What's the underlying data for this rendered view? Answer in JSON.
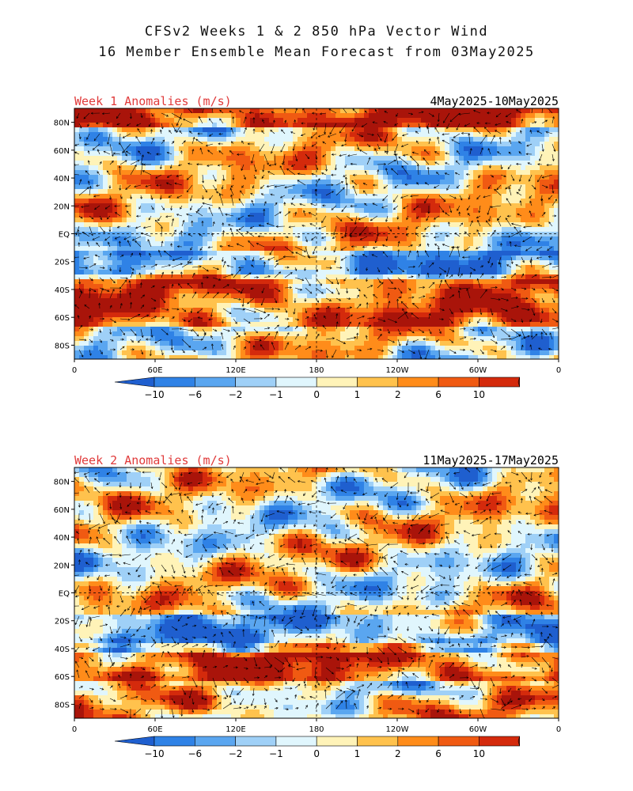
{
  "title": {
    "line1": "CFSv2 Weeks 1 & 2 850 hPa Vector Wind",
    "line2": "16 Member Ensemble Mean Forecast from 03May2025"
  },
  "panels": [
    {
      "label": "Week 1 Anomalies (m/s)",
      "dates": "4May2025-10May2025"
    },
    {
      "label": "Week 2 Anomalies (m/s)",
      "dates": "11May2025-17May2025"
    }
  ],
  "axes": {
    "lat_labels": [
      "80N",
      "60N",
      "40N",
      "20N",
      "EQ",
      "20S",
      "40S",
      "60S",
      "80S"
    ],
    "lon_labels": [
      "0",
      "60E",
      "120E",
      "180",
      "120W",
      "60W",
      "0"
    ]
  },
  "colorbar": {
    "labels": [
      "-10",
      "-6",
      "-2",
      "-1",
      "0",
      "1",
      "2",
      "6",
      "10"
    ],
    "colors": [
      "#1f5fcf",
      "#2f82e6",
      "#5aa6f0",
      "#9fd0f7",
      "#e0f6fd",
      "#fff3b8",
      "#ffc24d",
      "#ff8c1a",
      "#f05a12",
      "#d42a0c",
      "#a9140a"
    ]
  },
  "label_color": "#e03a3a"
}
